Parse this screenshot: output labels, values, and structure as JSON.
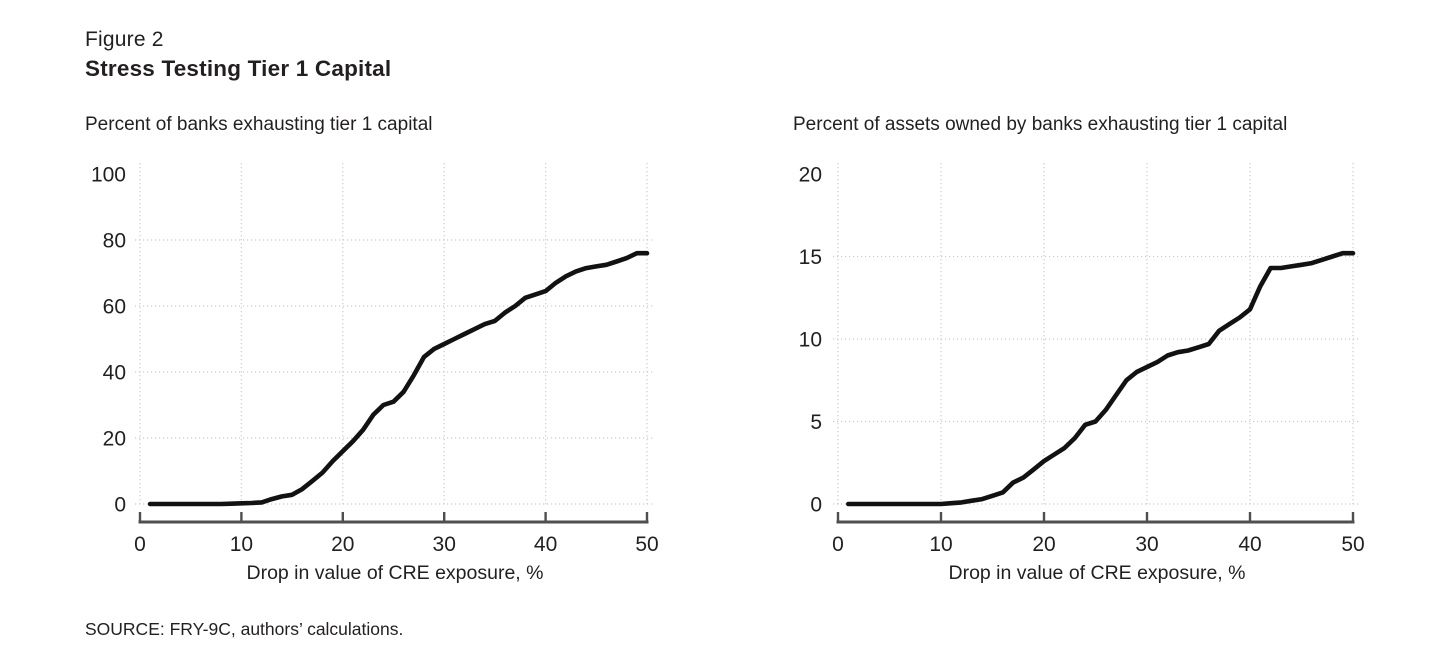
{
  "figure": {
    "label": "Figure 2",
    "title": "Stress Testing Tier 1 Capital"
  },
  "source_note": "SOURCE: FRY-9C, authors’ calculations.",
  "colors": {
    "line": "#121212",
    "grid": "#cccccc",
    "axis": "#4f4f4f",
    "text": "#231f20"
  },
  "chart_data": [
    {
      "type": "line",
      "title": "Percent of banks exhausting tier 1 capital",
      "xlabel": "Drop in value of CRE exposure, %",
      "ylabel": "",
      "xlim": [
        0,
        50
      ],
      "ylim": [
        0,
        100
      ],
      "x_ticks": [
        0,
        10,
        20,
        30,
        40,
        50
      ],
      "y_ticks": [
        0,
        20,
        40,
        60,
        80,
        100
      ],
      "grid": "dotted",
      "legend": "none",
      "x": [
        1,
        2,
        3,
        4,
        5,
        6,
        7,
        8,
        9,
        10,
        11,
        12,
        13,
        14,
        15,
        16,
        17,
        18,
        19,
        20,
        21,
        22,
        23,
        24,
        25,
        26,
        27,
        28,
        29,
        30,
        31,
        32,
        33,
        34,
        35,
        36,
        37,
        38,
        39,
        40,
        41,
        42,
        43,
        44,
        45,
        46,
        47,
        48,
        49,
        50
      ],
      "values": [
        0,
        0,
        0,
        0,
        0,
        0,
        0,
        0,
        0.1,
        0.2,
        0.3,
        0.5,
        1.5,
        2.3,
        2.8,
        4.5,
        7,
        9.5,
        13,
        16,
        19,
        22.5,
        27,
        30,
        31,
        34,
        39,
        44.5,
        47,
        48.5,
        50,
        51.5,
        53,
        54.5,
        55.5,
        58,
        60,
        62.5,
        63.5,
        64.5,
        67,
        69,
        70.5,
        71.5,
        72,
        72.5,
        73.5,
        74.5,
        76,
        76
      ]
    },
    {
      "type": "line",
      "title": "Percent of assets owned by banks exhausting tier 1 capital",
      "xlabel": "Drop in value of CRE exposure, %",
      "ylabel": "",
      "xlim": [
        0,
        50
      ],
      "ylim": [
        0,
        20
      ],
      "x_ticks": [
        0,
        10,
        20,
        30,
        40,
        50
      ],
      "y_ticks": [
        0,
        5,
        10,
        15,
        20
      ],
      "grid": "dotted",
      "legend": "none",
      "x": [
        1,
        2,
        3,
        4,
        5,
        6,
        7,
        8,
        9,
        10,
        11,
        12,
        13,
        14,
        15,
        16,
        17,
        18,
        19,
        20,
        21,
        22,
        23,
        24,
        25,
        26,
        27,
        28,
        29,
        30,
        31,
        32,
        33,
        34,
        35,
        36,
        37,
        38,
        39,
        40,
        41,
        42,
        43,
        44,
        45,
        46,
        47,
        48,
        49,
        50
      ],
      "values": [
        0,
        0,
        0,
        0,
        0,
        0,
        0,
        0,
        0,
        0,
        0.05,
        0.1,
        0.2,
        0.3,
        0.5,
        0.7,
        1.3,
        1.6,
        2.1,
        2.6,
        3,
        3.4,
        4,
        4.8,
        5,
        5.7,
        6.6,
        7.5,
        8,
        8.3,
        8.6,
        9,
        9.2,
        9.3,
        9.5,
        9.7,
        10.5,
        10.9,
        11.3,
        11.8,
        13.2,
        14.3,
        14.3,
        14.4,
        14.5,
        14.6,
        14.8,
        15,
        15.2,
        15.2
      ]
    }
  ]
}
